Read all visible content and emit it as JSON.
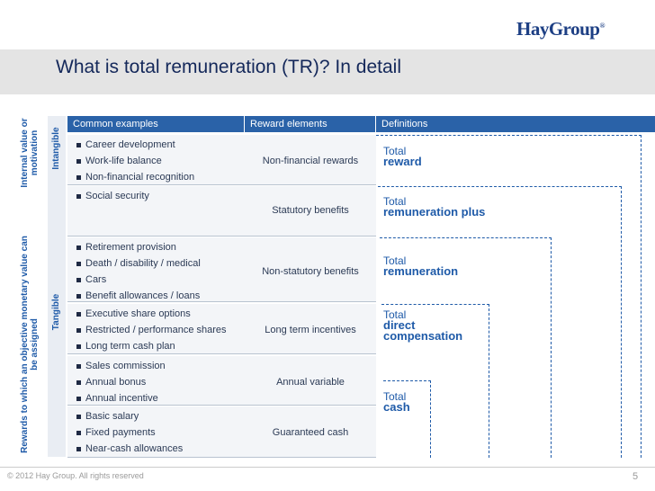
{
  "header": {
    "logo": "HayGroup",
    "logo_mark": "®",
    "title": "What is total remuneration (TR)? In detail"
  },
  "side_labels": {
    "internal": "Internal value or motivation",
    "objective": "Rewards to which an objective monetary value can be assigned",
    "intangible": "Intangible",
    "tangible": "Tangible"
  },
  "table": {
    "columns": [
      "Common examples",
      "Reward elements",
      "Definitions"
    ],
    "rows": [
      {
        "examples": [
          "Career development",
          "Work-life balance",
          "Non-financial recognition"
        ],
        "reward_element": "Non-financial rewards",
        "definition": {
          "lead": "Total",
          "rest": [
            "reward"
          ]
        }
      },
      {
        "examples": [
          "Social security"
        ],
        "reward_element": "Statutory benefits",
        "definition": {
          "lead": "Total",
          "rest": [
            "remuneration plus"
          ]
        }
      },
      {
        "examples": [
          "Retirement provision",
          "Death / disability / medical",
          "Cars",
          "Benefit allowances / loans"
        ],
        "reward_element": "Non-statutory benefits",
        "definition": {
          "lead": "Total",
          "rest": [
            "remuneration"
          ]
        }
      },
      {
        "examples": [
          "Executive share options",
          "Restricted / performance shares",
          "Long term cash plan"
        ],
        "reward_element": "Long term incentives",
        "definition": {
          "lead": "Total",
          "rest": [
            "direct",
            "compensation"
          ]
        }
      },
      {
        "examples": [
          "Sales commission",
          "Annual bonus",
          "Annual incentive"
        ],
        "reward_element": "Annual variable",
        "definition": {
          "lead": "Total",
          "rest": [
            "cash"
          ]
        }
      },
      {
        "examples": [
          "Basic salary",
          "Fixed payments",
          "Near-cash allowances"
        ],
        "reward_element": "Guaranteed cash",
        "definition": null
      }
    ]
  },
  "footer": {
    "copyright": "© 2012 Hay Group. All rights reserved",
    "page": "5"
  }
}
